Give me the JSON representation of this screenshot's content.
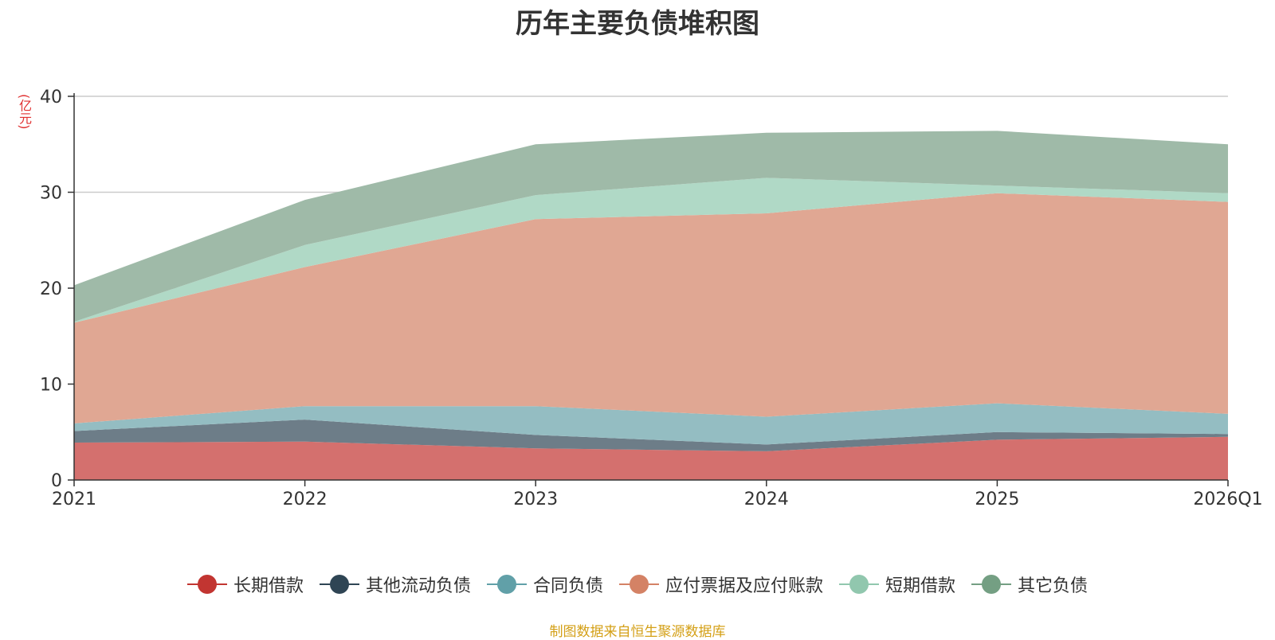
{
  "chart_data": {
    "type": "area",
    "stacked": true,
    "title": "历年主要负债堆积图",
    "ylabel": "(亿元)",
    "xlabel": "",
    "categories": [
      "2021",
      "2022",
      "2023",
      "2024",
      "2025",
      "2026Q1"
    ],
    "yticks": [
      "0",
      "10",
      "20",
      "30",
      "40"
    ],
    "ylim": [
      0,
      40
    ],
    "grid": true,
    "legend_position": "bottom",
    "series": [
      {
        "name": "长期借款",
        "color": "#c23531",
        "fill": "#d4706e",
        "values": [
          3.9,
          4.0,
          3.3,
          3.0,
          4.2,
          4.5
        ]
      },
      {
        "name": "其他流动负债",
        "color": "#2f4554",
        "fill": "#6d7d88",
        "values": [
          1.2,
          2.3,
          1.4,
          0.7,
          0.8,
          0.3
        ]
      },
      {
        "name": "合同负债",
        "color": "#61a0a8",
        "fill": "#94bdc2",
        "values": [
          0.8,
          1.4,
          3.0,
          2.9,
          3.0,
          2.1
        ]
      },
      {
        "name": "应付票据及应付账款",
        "color": "#d48265",
        "fill": "#e0a793",
        "values": [
          10.5,
          14.5,
          19.5,
          21.2,
          21.9,
          22.1
        ]
      },
      {
        "name": "短期借款",
        "color": "#91c7ae",
        "fill": "#b0d9c6",
        "values": [
          0.1,
          2.3,
          2.5,
          3.7,
          0.8,
          0.9
        ]
      },
      {
        "name": "其它负债",
        "color": "#749f83",
        "fill": "#9fbaa8",
        "values": [
          3.8,
          4.7,
          5.3,
          4.7,
          5.7,
          5.1
        ]
      }
    ]
  },
  "source_text": "制图数据来自恒生聚源数据库"
}
